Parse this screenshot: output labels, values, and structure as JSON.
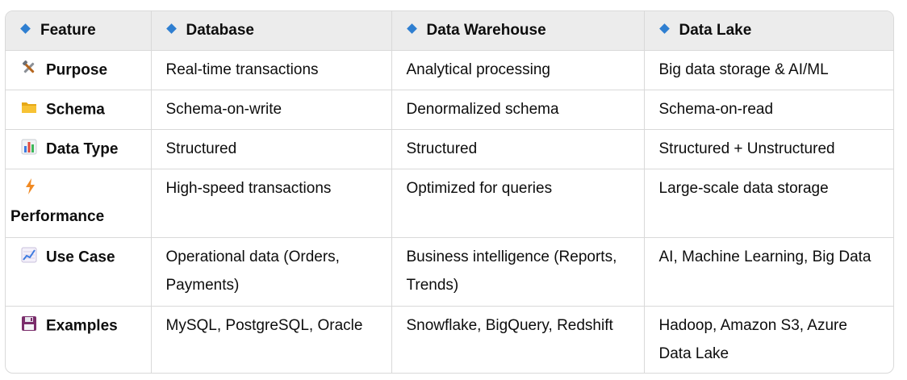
{
  "header": {
    "cols": [
      "Feature",
      "Database",
      "Data Warehouse",
      "Data Lake"
    ]
  },
  "rows": [
    {
      "feature": "Purpose",
      "icon": "tools-icon",
      "database": "Real-time transactions",
      "warehouse": "Analytical processing",
      "lake": "Big data storage & AI/ML"
    },
    {
      "feature": "Schema",
      "icon": "folder-icon",
      "database": "Schema-on-write",
      "warehouse": "Denormalized schema",
      "lake": "Schema-on-read"
    },
    {
      "feature": "Data Type",
      "icon": "bar-chart-icon",
      "database": "Structured",
      "warehouse": "Structured",
      "lake": "Structured + Unstructured"
    },
    {
      "feature": "Performance",
      "icon": "lightning-icon",
      "database": "High-speed transactions",
      "warehouse": "Optimized for queries",
      "lake": "Large-scale data storage"
    },
    {
      "feature": "Use Case",
      "icon": "trend-chart-icon",
      "database": "Operational data (Orders, Payments)",
      "warehouse": "Business intelligence (Reports, Trends)",
      "lake": "AI, Machine Learning, Big Data"
    },
    {
      "feature": "Examples",
      "icon": "floppy-disk-icon",
      "database": "MySQL, PostgreSQL, Oracle",
      "warehouse": "Snowflake, BigQuery, Redshift",
      "lake": "Hadoop, Amazon S3, Azure Data Lake"
    }
  ],
  "colors": {
    "header_bg": "#ececec",
    "border": "#d9d9d9",
    "diamond": "#2f7fd1"
  }
}
